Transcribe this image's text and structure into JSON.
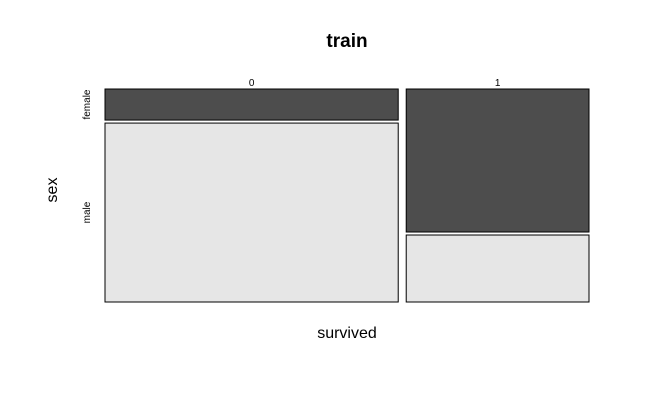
{
  "chart_data": {
    "type": "mosaic",
    "title": "train",
    "xlabel": "survived",
    "ylabel": "sex",
    "x_categories": [
      "0",
      "1"
    ],
    "y_categories": [
      "female",
      "male"
    ],
    "x_proportions": [
      0.616,
      0.384
    ],
    "y_proportions_within_x": {
      "0": {
        "female": 0.148,
        "male": 0.852
      },
      "1": {
        "female": 0.681,
        "male": 0.319
      }
    },
    "colors": {
      "female": "#4d4d4d",
      "male": "#e6e6e6",
      "border": "#000000"
    },
    "grid": false,
    "legend": "none"
  }
}
